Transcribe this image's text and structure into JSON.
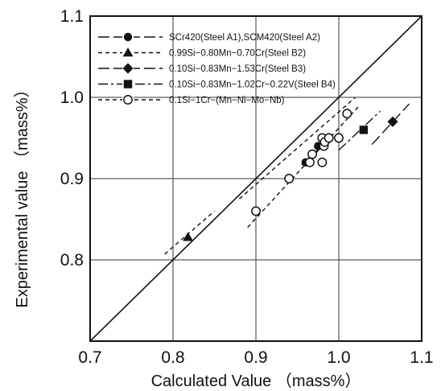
{
  "chart_data": {
    "type": "scatter",
    "xlabel": "Calculated Value （mass%）",
    "ylabel": "Experimental value （mass%）",
    "xlim": [
      0.7,
      1.1
    ],
    "ylim": [
      0.7,
      1.1
    ],
    "x_ticks": [
      "0.7",
      "0.8",
      "0.9",
      "1.0",
      "1.1"
    ],
    "y_ticks": [
      "0.8",
      "0.9",
      "1.0",
      "1.1"
    ],
    "grid": true,
    "legend_position": "top-left",
    "reference_line": {
      "x": [
        0.7,
        1.1
      ],
      "y": [
        0.7,
        1.1
      ]
    },
    "series": [
      {
        "name": "SCr420(Steel A1),SCM420(Steel A2)",
        "marker": "filled-circle",
        "line_style": "long-dash",
        "x": [
          0.96,
          0.975
        ],
        "y": [
          0.92,
          0.94
        ],
        "band": {
          "x": [
            0.955,
            0.985
          ],
          "y": [
            0.917,
            0.945
          ]
        }
      },
      {
        "name": "0.99Si−0.80Mn−0.70Cr(Steel B2)",
        "marker": "filled-triangle",
        "line_style": "dashed",
        "x": [
          0.818
        ],
        "y": [
          0.828
        ],
        "band": {
          "x": [
            0.79,
            0.85
          ],
          "y": [
            0.807,
            0.86
          ]
        }
      },
      {
        "name": "0.10Si−0.83Mn−1.53Cr(Steel B3)",
        "marker": "filled-diamond",
        "line_style": "long-dash",
        "x": [
          1.065
        ],
        "y": [
          0.97
        ],
        "band": {
          "x": [
            1.04,
            1.085
          ],
          "y": [
            0.942,
            0.992
          ]
        }
      },
      {
        "name": "0.10Si−0.83Mn−1.02Cr−0.22V(Steel B4)",
        "marker": "filled-square",
        "line_style": "dash-dot",
        "x": [
          1.03
        ],
        "y": [
          0.96
        ],
        "band": {
          "x": [
            1.0,
            1.05
          ],
          "y": [
            0.935,
            0.983
          ]
        }
      },
      {
        "name": "0.1Si−1Cr−(Mn−Ni−Mo−Nb)",
        "marker": "open-circle",
        "line_style": "dashed",
        "x": [
          0.9,
          0.94,
          0.965,
          0.968,
          0.98,
          0.98,
          0.982,
          0.983,
          0.988,
          1.0,
          1.01
        ],
        "y": [
          0.86,
          0.9,
          0.92,
          0.93,
          0.95,
          0.92,
          0.94,
          0.945,
          0.95,
          0.95,
          0.98
        ],
        "bands": [
          {
            "x": [
              0.89,
              1.025
            ],
            "y": [
              0.84,
              0.99
            ]
          },
          {
            "x": [
              0.88,
              1.02
            ],
            "y": [
              0.875,
              1.0
            ]
          }
        ]
      }
    ]
  }
}
